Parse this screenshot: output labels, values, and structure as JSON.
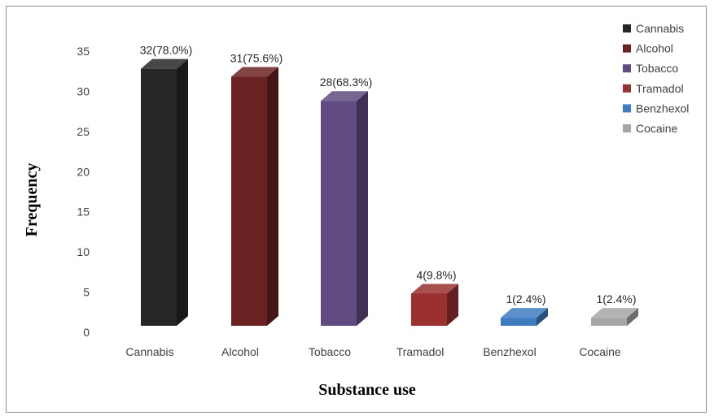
{
  "chart_data": {
    "type": "bar",
    "style": "3d-column",
    "title": "",
    "xlabel": "Substance use",
    "ylabel": "Frequency",
    "ylim": [
      0,
      35
    ],
    "yticks": [
      0,
      5,
      10,
      15,
      20,
      25,
      30,
      35
    ],
    "grid": false,
    "legend_position": "top-right",
    "categories": [
      "Cannabis",
      "Alcohol",
      "Tobacco",
      "Tramadol",
      "Benzhexol",
      "Cocaine"
    ],
    "values": [
      32,
      31,
      28,
      4,
      1,
      1
    ],
    "data_labels": [
      "32(78.0%)",
      "31(75.6%)",
      "28(68.3%)",
      "4(9.8%)",
      "1(2.4%)",
      "1(2.4%)"
    ],
    "colors": [
      "#262626",
      "#6b2222",
      "#5f4b7f",
      "#9a3030",
      "#3f7bbf",
      "#a6a6a6"
    ],
    "legend": [
      "Cannabis",
      "Alcohol",
      "Tobacco",
      "Tramadol",
      "Benzhexol",
      "Cocaine"
    ]
  }
}
